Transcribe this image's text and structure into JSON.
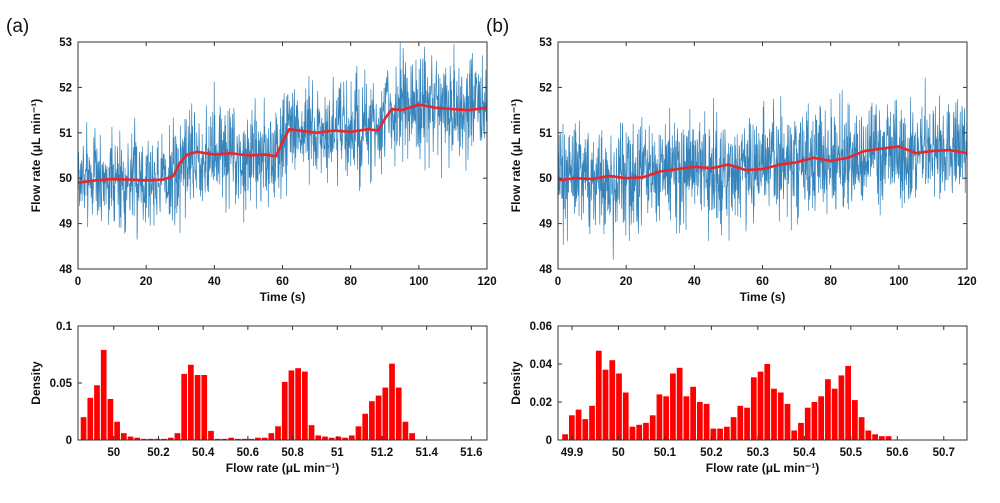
{
  "panels": [
    {
      "label": "(a)"
    },
    {
      "label": "(b)"
    }
  ],
  "colors": {
    "noise_trace": "#1f77b4",
    "smoothed_trace": "#e8262b",
    "histogram_bar": "#ff0000",
    "axis": "#333333"
  },
  "chart_data": [
    {
      "type": "line",
      "panel": "(a)",
      "xlabel": "Time (s)",
      "ylabel": "Flow rate (μL min⁻¹)",
      "xlim": [
        0,
        120
      ],
      "ylim": [
        48,
        53
      ],
      "xticks": [
        0,
        20,
        40,
        60,
        80,
        100,
        120
      ],
      "yticks": [
        48,
        49,
        50,
        51,
        52,
        53
      ],
      "grid": false,
      "series": [
        {
          "role": "raw-signal",
          "color": "#1f77b4",
          "levels": [
            {
              "from": 0,
              "to": 30,
              "mean": 50.0
            },
            {
              "from": 30,
              "to": 60,
              "mean": 50.5
            },
            {
              "from": 60,
              "to": 90,
              "mean": 51.05
            },
            {
              "from": 90,
              "to": 120,
              "mean": 51.55
            }
          ],
          "noise_range": 1.7
        },
        {
          "role": "moving-average",
          "color": "#e8262b",
          "x": [
            0,
            5,
            10,
            15,
            20,
            25,
            28,
            30,
            32,
            35,
            40,
            45,
            50,
            55,
            58,
            60,
            62,
            65,
            70,
            75,
            80,
            85,
            88,
            90,
            92,
            95,
            100,
            105,
            110,
            115,
            120
          ],
          "y": [
            49.9,
            49.95,
            49.98,
            49.97,
            49.95,
            49.97,
            50.05,
            50.35,
            50.52,
            50.58,
            50.52,
            50.55,
            50.5,
            50.52,
            50.48,
            50.8,
            51.08,
            51.05,
            51.0,
            51.05,
            51.02,
            51.08,
            51.05,
            51.3,
            51.52,
            51.5,
            51.62,
            51.55,
            51.52,
            51.5,
            51.55
          ]
        }
      ]
    },
    {
      "type": "line",
      "panel": "(b)",
      "xlabel": "Time (s)",
      "ylabel": "Flow rate (μL min⁻¹)",
      "xlim": [
        0,
        120
      ],
      "ylim": [
        48,
        53
      ],
      "xticks": [
        0,
        20,
        40,
        60,
        80,
        100,
        120
      ],
      "yticks": [
        48,
        49,
        50,
        51,
        52,
        53
      ],
      "grid": false,
      "series": [
        {
          "role": "raw-signal",
          "color": "#1f77b4",
          "levels": [
            {
              "from": 0,
              "to": 30,
              "mean": 50.0
            },
            {
              "from": 30,
              "to": 60,
              "mean": 50.2
            },
            {
              "from": 60,
              "to": 90,
              "mean": 50.4
            },
            {
              "from": 90,
              "to": 120,
              "mean": 50.6
            }
          ],
          "noise_range": 1.8
        },
        {
          "role": "moving-average",
          "color": "#e8262b",
          "x": [
            0,
            5,
            10,
            15,
            20,
            25,
            30,
            35,
            40,
            45,
            50,
            55,
            60,
            65,
            70,
            75,
            80,
            85,
            90,
            95,
            100,
            105,
            110,
            115,
            120
          ],
          "y": [
            49.95,
            50.0,
            49.98,
            50.05,
            50.0,
            50.02,
            50.15,
            50.2,
            50.25,
            50.22,
            50.3,
            50.18,
            50.2,
            50.3,
            50.35,
            50.45,
            50.38,
            50.45,
            50.6,
            50.65,
            50.7,
            50.55,
            50.6,
            50.62,
            50.55
          ]
        }
      ]
    },
    {
      "type": "bar",
      "panel": "(a)",
      "xlabel": "Flow rate (μL min⁻¹)",
      "ylabel": "Density",
      "xlim": [
        49.84,
        51.67
      ],
      "ylim": [
        0,
        0.1
      ],
      "xticks": [
        50,
        50.2,
        50.4,
        50.6,
        50.8,
        51,
        51.2,
        51.4,
        51.6
      ],
      "xtick_labels": [
        "50",
        "50.2",
        "50.4",
        "50.6",
        "50.8",
        "51",
        "51.2",
        "51.4",
        "51.6"
      ],
      "yticks": [
        0,
        0.05,
        0.1
      ],
      "ytick_labels": [
        "0",
        "0.05",
        "0.1"
      ],
      "bin_start": 49.85,
      "bin_width": 0.03,
      "values": [
        0.02,
        0.037,
        0.048,
        0.079,
        0.036,
        0.016,
        0.006,
        0.003,
        0.002,
        0.001,
        0.001,
        0.001,
        0.001,
        0.002,
        0.006,
        0.058,
        0.066,
        0.057,
        0.057,
        0.008,
        0.001,
        0.001,
        0.002,
        0.001,
        0.001,
        0.001,
        0.002,
        0.002,
        0.006,
        0.012,
        0.051,
        0.061,
        0.063,
        0.06,
        0.013,
        0.004,
        0.003,
        0.002,
        0.003,
        0.002,
        0.004,
        0.012,
        0.023,
        0.034,
        0.039,
        0.046,
        0.067,
        0.046,
        0.016,
        0.006
      ]
    },
    {
      "type": "bar",
      "panel": "(b)",
      "xlabel": "Flow rate (μL min⁻¹)",
      "ylabel": "Density",
      "xlim": [
        49.87,
        50.75
      ],
      "ylim": [
        0,
        0.06
      ],
      "xticks": [
        49.9,
        50,
        50.1,
        50.2,
        50.3,
        50.4,
        50.5,
        50.6,
        50.7
      ],
      "xtick_labels": [
        "49.9",
        "50",
        "50.1",
        "50.2",
        "50.3",
        "50.4",
        "50.5",
        "50.6",
        "50.7"
      ],
      "yticks": [
        0,
        0.02,
        0.04,
        0.06
      ],
      "ytick_labels": [
        "0",
        "0.02",
        "0.04",
        "0.06"
      ],
      "bin_start": 49.878,
      "bin_width": 0.0145,
      "values": [
        0.003,
        0.013,
        0.016,
        0.011,
        0.018,
        0.047,
        0.037,
        0.042,
        0.035,
        0.025,
        0.007,
        0.008,
        0.009,
        0.013,
        0.024,
        0.023,
        0.035,
        0.038,
        0.023,
        0.028,
        0.02,
        0.019,
        0.006,
        0.006,
        0.007,
        0.012,
        0.018,
        0.017,
        0.033,
        0.036,
        0.04,
        0.027,
        0.025,
        0.019,
        0.005,
        0.009,
        0.017,
        0.02,
        0.023,
        0.032,
        0.027,
        0.034,
        0.039,
        0.021,
        0.012,
        0.005,
        0.003,
        0.002,
        0.002
      ]
    }
  ]
}
